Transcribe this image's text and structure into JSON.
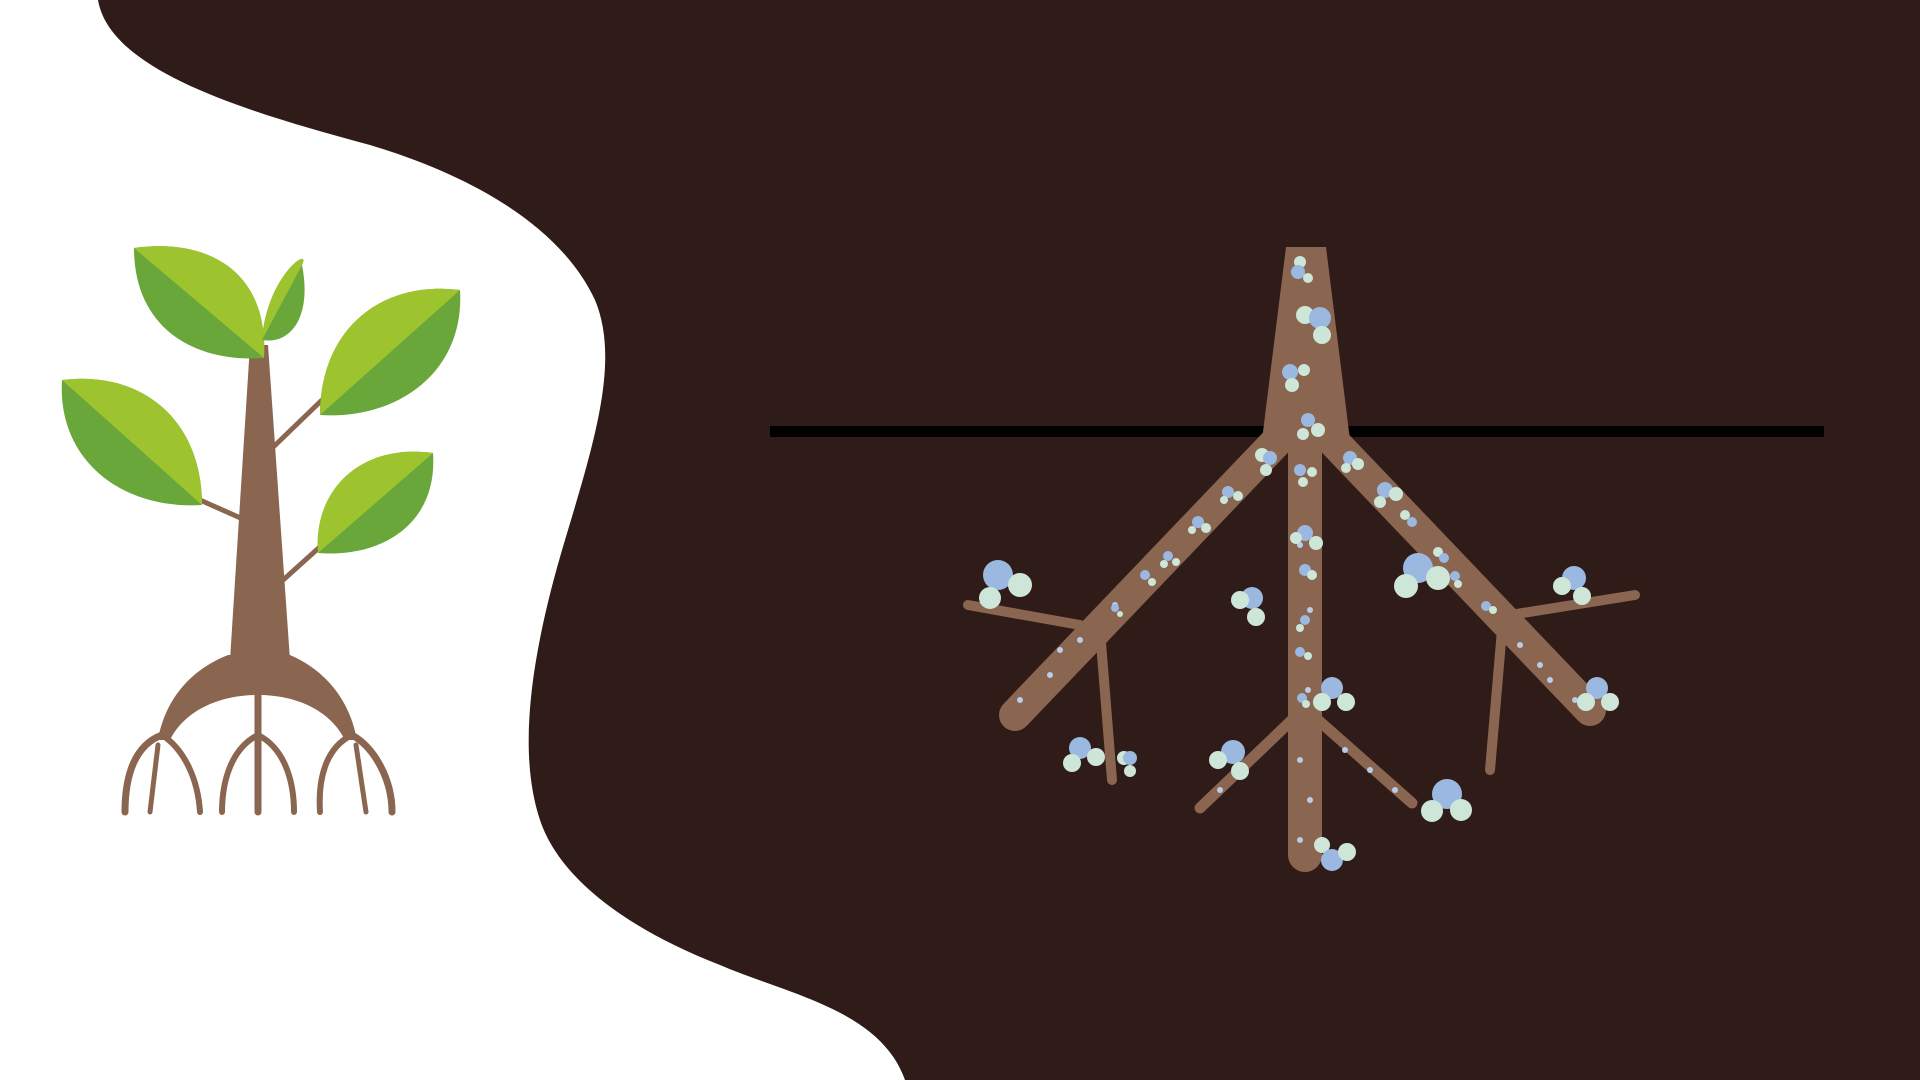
{
  "scene": {
    "name": "plant-root-nodules-illustration",
    "colors": {
      "soil": "#2f1b17",
      "background": "#ffffff",
      "trunk": "#8a6550",
      "leaf_light": "#9dc42f",
      "leaf_dark": "#6aa73a",
      "ground_line": "#000000",
      "nodule_blue": "#9ab8e0",
      "nodule_mint": "#cde6d8"
    },
    "icons": [
      "seedling-icon",
      "root-system-icon",
      "nodule-icon"
    ]
  }
}
